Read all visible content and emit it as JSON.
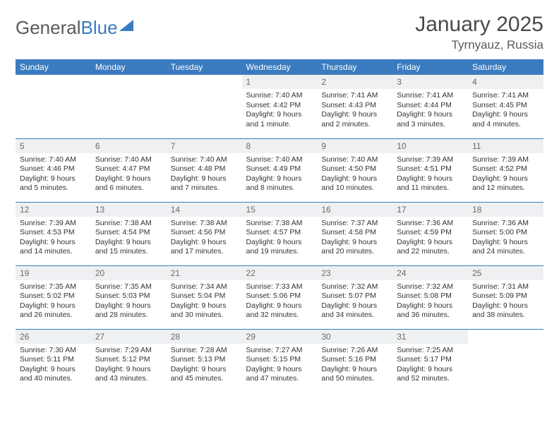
{
  "brand": {
    "part1": "General",
    "part2": "Blue"
  },
  "title": {
    "month": "January 2025",
    "location": "Tyrnyauz, Russia"
  },
  "weekdays": [
    "Sunday",
    "Monday",
    "Tuesday",
    "Wednesday",
    "Thursday",
    "Friday",
    "Saturday"
  ],
  "colors": {
    "accent": "#3b7bbf",
    "daynum_bg": "#eef0f2",
    "text": "#333333"
  },
  "weeks": [
    [
      {
        "n": "",
        "sun": "",
        "set": "",
        "day": ""
      },
      {
        "n": "",
        "sun": "",
        "set": "",
        "day": ""
      },
      {
        "n": "",
        "sun": "",
        "set": "",
        "day": ""
      },
      {
        "n": "1",
        "sun": "Sunrise: 7:40 AM",
        "set": "Sunset: 4:42 PM",
        "day": "Daylight: 9 hours and 1 minute."
      },
      {
        "n": "2",
        "sun": "Sunrise: 7:41 AM",
        "set": "Sunset: 4:43 PM",
        "day": "Daylight: 9 hours and 2 minutes."
      },
      {
        "n": "3",
        "sun": "Sunrise: 7:41 AM",
        "set": "Sunset: 4:44 PM",
        "day": "Daylight: 9 hours and 3 minutes."
      },
      {
        "n": "4",
        "sun": "Sunrise: 7:41 AM",
        "set": "Sunset: 4:45 PM",
        "day": "Daylight: 9 hours and 4 minutes."
      }
    ],
    [
      {
        "n": "5",
        "sun": "Sunrise: 7:40 AM",
        "set": "Sunset: 4:46 PM",
        "day": "Daylight: 9 hours and 5 minutes."
      },
      {
        "n": "6",
        "sun": "Sunrise: 7:40 AM",
        "set": "Sunset: 4:47 PM",
        "day": "Daylight: 9 hours and 6 minutes."
      },
      {
        "n": "7",
        "sun": "Sunrise: 7:40 AM",
        "set": "Sunset: 4:48 PM",
        "day": "Daylight: 9 hours and 7 minutes."
      },
      {
        "n": "8",
        "sun": "Sunrise: 7:40 AM",
        "set": "Sunset: 4:49 PM",
        "day": "Daylight: 9 hours and 8 minutes."
      },
      {
        "n": "9",
        "sun": "Sunrise: 7:40 AM",
        "set": "Sunset: 4:50 PM",
        "day": "Daylight: 9 hours and 10 minutes."
      },
      {
        "n": "10",
        "sun": "Sunrise: 7:39 AM",
        "set": "Sunset: 4:51 PM",
        "day": "Daylight: 9 hours and 11 minutes."
      },
      {
        "n": "11",
        "sun": "Sunrise: 7:39 AM",
        "set": "Sunset: 4:52 PM",
        "day": "Daylight: 9 hours and 12 minutes."
      }
    ],
    [
      {
        "n": "12",
        "sun": "Sunrise: 7:39 AM",
        "set": "Sunset: 4:53 PM",
        "day": "Daylight: 9 hours and 14 minutes."
      },
      {
        "n": "13",
        "sun": "Sunrise: 7:38 AM",
        "set": "Sunset: 4:54 PM",
        "day": "Daylight: 9 hours and 15 minutes."
      },
      {
        "n": "14",
        "sun": "Sunrise: 7:38 AM",
        "set": "Sunset: 4:56 PM",
        "day": "Daylight: 9 hours and 17 minutes."
      },
      {
        "n": "15",
        "sun": "Sunrise: 7:38 AM",
        "set": "Sunset: 4:57 PM",
        "day": "Daylight: 9 hours and 19 minutes."
      },
      {
        "n": "16",
        "sun": "Sunrise: 7:37 AM",
        "set": "Sunset: 4:58 PM",
        "day": "Daylight: 9 hours and 20 minutes."
      },
      {
        "n": "17",
        "sun": "Sunrise: 7:36 AM",
        "set": "Sunset: 4:59 PM",
        "day": "Daylight: 9 hours and 22 minutes."
      },
      {
        "n": "18",
        "sun": "Sunrise: 7:36 AM",
        "set": "Sunset: 5:00 PM",
        "day": "Daylight: 9 hours and 24 minutes."
      }
    ],
    [
      {
        "n": "19",
        "sun": "Sunrise: 7:35 AM",
        "set": "Sunset: 5:02 PM",
        "day": "Daylight: 9 hours and 26 minutes."
      },
      {
        "n": "20",
        "sun": "Sunrise: 7:35 AM",
        "set": "Sunset: 5:03 PM",
        "day": "Daylight: 9 hours and 28 minutes."
      },
      {
        "n": "21",
        "sun": "Sunrise: 7:34 AM",
        "set": "Sunset: 5:04 PM",
        "day": "Daylight: 9 hours and 30 minutes."
      },
      {
        "n": "22",
        "sun": "Sunrise: 7:33 AM",
        "set": "Sunset: 5:06 PM",
        "day": "Daylight: 9 hours and 32 minutes."
      },
      {
        "n": "23",
        "sun": "Sunrise: 7:32 AM",
        "set": "Sunset: 5:07 PM",
        "day": "Daylight: 9 hours and 34 minutes."
      },
      {
        "n": "24",
        "sun": "Sunrise: 7:32 AM",
        "set": "Sunset: 5:08 PM",
        "day": "Daylight: 9 hours and 36 minutes."
      },
      {
        "n": "25",
        "sun": "Sunrise: 7:31 AM",
        "set": "Sunset: 5:09 PM",
        "day": "Daylight: 9 hours and 38 minutes."
      }
    ],
    [
      {
        "n": "26",
        "sun": "Sunrise: 7:30 AM",
        "set": "Sunset: 5:11 PM",
        "day": "Daylight: 9 hours and 40 minutes."
      },
      {
        "n": "27",
        "sun": "Sunrise: 7:29 AM",
        "set": "Sunset: 5:12 PM",
        "day": "Daylight: 9 hours and 43 minutes."
      },
      {
        "n": "28",
        "sun": "Sunrise: 7:28 AM",
        "set": "Sunset: 5:13 PM",
        "day": "Daylight: 9 hours and 45 minutes."
      },
      {
        "n": "29",
        "sun": "Sunrise: 7:27 AM",
        "set": "Sunset: 5:15 PM",
        "day": "Daylight: 9 hours and 47 minutes."
      },
      {
        "n": "30",
        "sun": "Sunrise: 7:26 AM",
        "set": "Sunset: 5:16 PM",
        "day": "Daylight: 9 hours and 50 minutes."
      },
      {
        "n": "31",
        "sun": "Sunrise: 7:25 AM",
        "set": "Sunset: 5:17 PM",
        "day": "Daylight: 9 hours and 52 minutes."
      },
      {
        "n": "",
        "sun": "",
        "set": "",
        "day": ""
      }
    ]
  ]
}
